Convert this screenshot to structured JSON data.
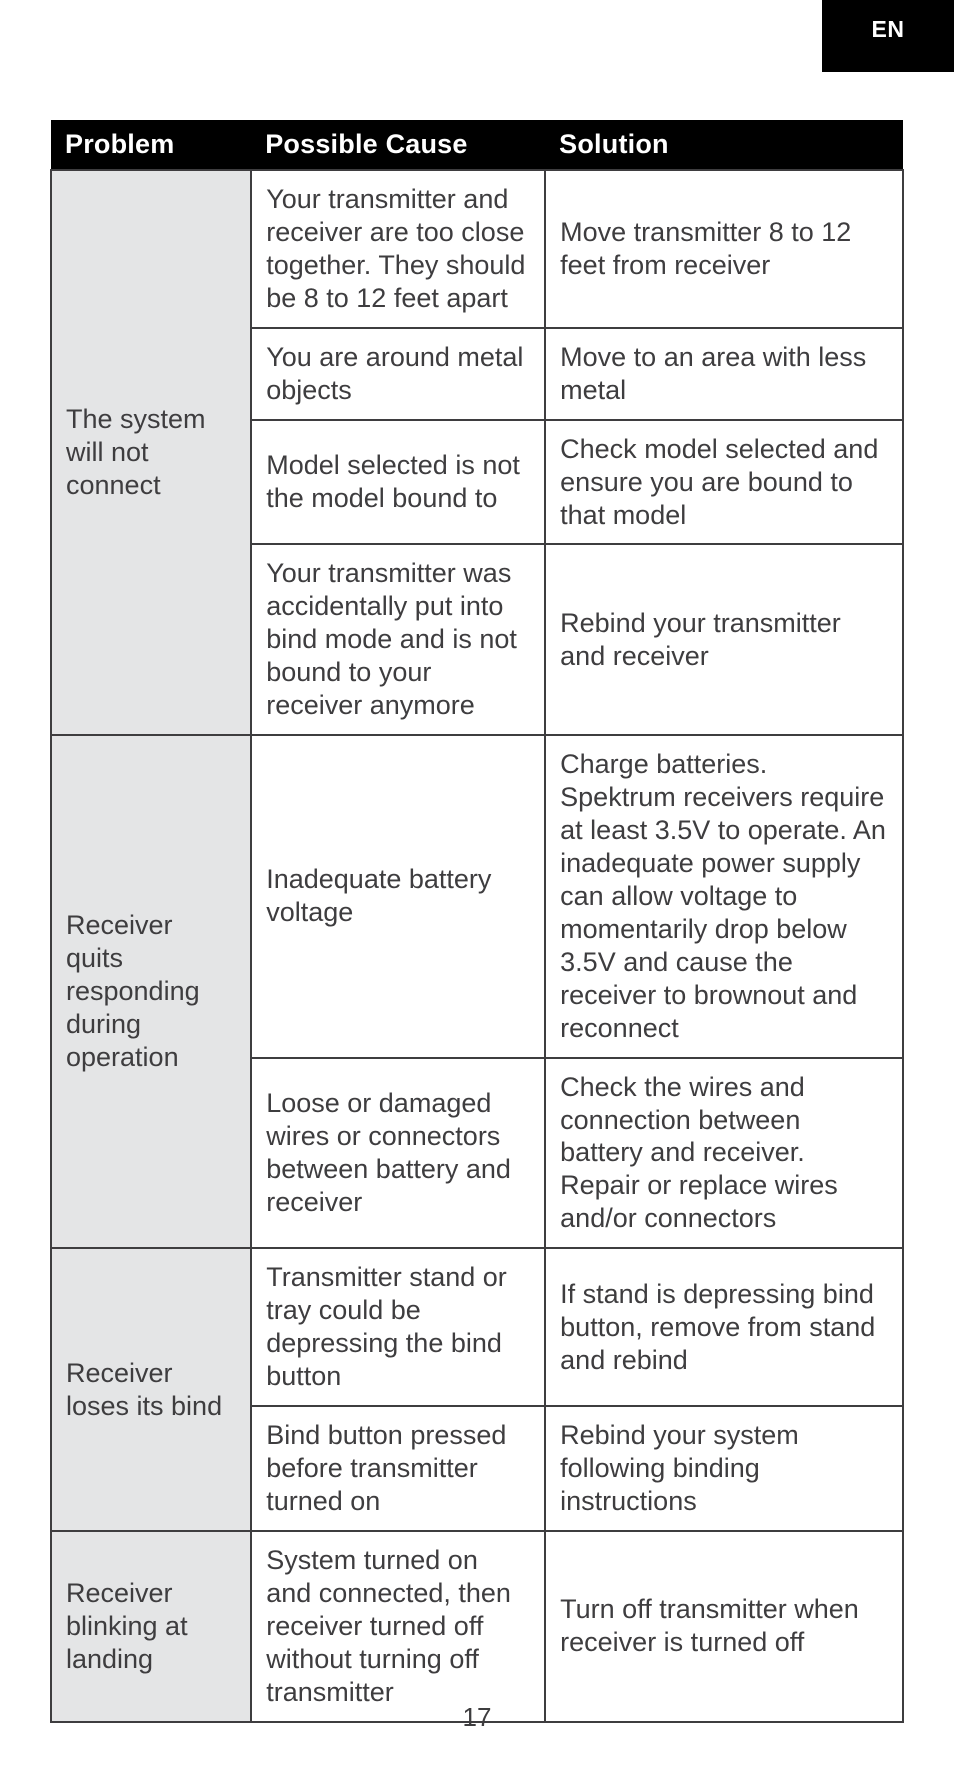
{
  "language_tab": "EN",
  "page_number": "17",
  "table": {
    "columns": [
      "Problem",
      "Possible Cause",
      "Solution"
    ],
    "colors": {
      "header_bg": "#000000",
      "header_fg": "#ffffff",
      "problem_bg": "#e4e5e6",
      "border": "#3e3d3f",
      "text": "#3e3d3f",
      "page_bg": "#ffffff"
    },
    "font": {
      "header_size_pt": 20,
      "body_size_pt": 20,
      "header_weight": 700,
      "body_weight": 400
    },
    "groups": [
      {
        "problem": "The system will not connect",
        "rows": [
          {
            "cause": "Your transmitter and receiver are too close together. They should be 8 to 12 feet apart",
            "solution": "Move transmitter 8 to 12 feet from receiver"
          },
          {
            "cause": "You are around metal objects",
            "solution": "Move to an area with less metal"
          },
          {
            "cause": "Model selected is not the model bound to",
            "solution": "Check model selected and ensure you are bound to that model"
          },
          {
            "cause": "Your transmitter was accidentally put into bind mode and is not bound to your receiver anymore",
            "solution": "Rebind your transmitter and receiver"
          }
        ]
      },
      {
        "problem": "Receiver quits responding during operation",
        "rows": [
          {
            "cause": "Inadequate battery voltage",
            "solution": "Charge batteries. Spektrum receivers require at least 3.5V to operate. An inadequate power supply can allow voltage to momentarily drop below 3.5V and cause the receiver to brownout and reconnect"
          },
          {
            "cause": "Loose or damaged wires or connectors between battery and receiver",
            "solution": "Check the wires and connection between battery and receiver. Repair or replace wires and/or connectors"
          }
        ]
      },
      {
        "problem": "Receiver loses its bind",
        "rows": [
          {
            "cause": "Transmitter stand or tray could be depressing the bind button",
            "solution": "If stand is depressing bind button, remove from stand and rebind"
          },
          {
            "cause": "Bind button pressed before transmitter turned on",
            "solution": "Rebind your system following binding instructions"
          }
        ]
      },
      {
        "problem": "Receiver blinking at landing",
        "rows": [
          {
            "cause": "System turned on and connected, then receiver turned off without turning off transmitter",
            "solution": "Turn off transmitter when receiver is turned off"
          }
        ]
      }
    ]
  }
}
